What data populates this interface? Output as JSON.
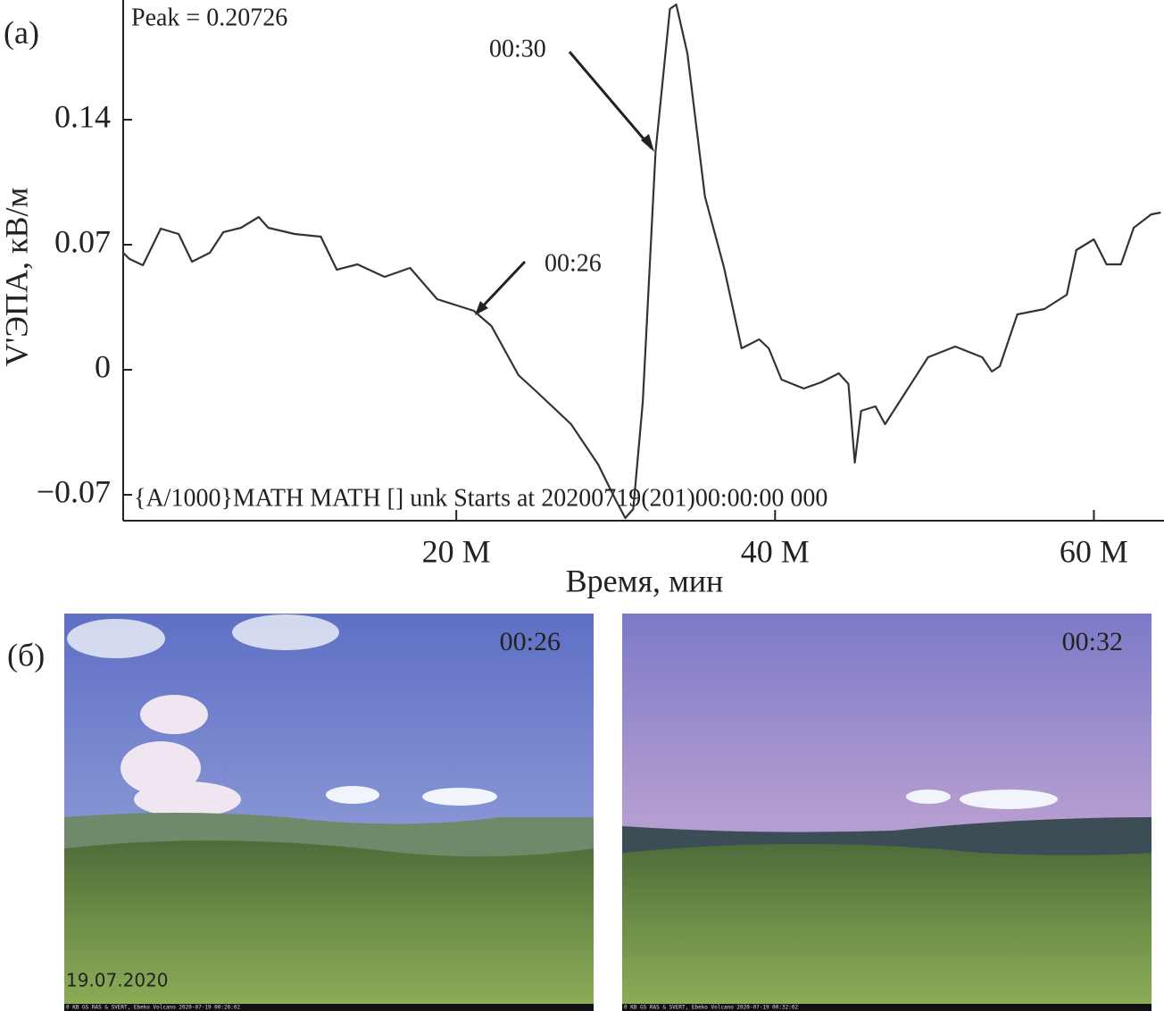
{
  "chart_data": {
    "type": "line",
    "panel_label": "(а)",
    "peak_note": "Peak = 0.20726",
    "start_note": "{A/1000}MATH MATH [] unk Starts at 20200719(201)00:00:00 000",
    "ylabel": "V'ЭПА, кВ/м",
    "xlabel": "Время, мин",
    "annotations": [
      "00:30",
      "00:26"
    ],
    "color": "#333333",
    "xlim": [
      -0.9,
      64.4
    ],
    "ylim": [
      -0.0845,
      0.207
    ],
    "xticks": [
      {
        "value": 20,
        "label": "20 M"
      },
      {
        "value": 40,
        "label": "40 M"
      },
      {
        "value": 60,
        "label": "60 M"
      }
    ],
    "yticks": [
      {
        "value": -0.07,
        "label": "−0.07"
      },
      0,
      0.07,
      0.14
    ],
    "x": [
      -0.9,
      -0.5,
      0.34,
      1.46,
      2.58,
      3.42,
      4.54,
      5.38,
      6.5,
      7.6,
      8.2,
      9.85,
      11.5,
      12.5,
      13.8,
      15.5,
      17.1,
      18.8,
      21.1,
      22.2,
      23.9,
      25.0,
      27.2,
      28.9,
      30.0,
      30.6,
      31.1,
      31.7,
      32.5,
      33.4,
      33.8,
      34.5,
      35.6,
      36.8,
      37.9,
      39.0,
      39.6,
      40.4,
      41.8,
      42.9,
      44.0,
      44.6,
      45.0,
      45.4,
      46.3,
      46.9,
      49.6,
      51.3,
      53.0,
      53.6,
      54.1,
      55.2,
      56.9,
      58.3,
      58.9,
      60.0,
      60.8,
      61.7,
      62.5,
      63.6,
      64.2
    ],
    "values": [
      0.0655,
      0.062,
      0.0585,
      0.079,
      0.076,
      0.0605,
      0.0655,
      0.077,
      0.0795,
      0.0855,
      0.0795,
      0.076,
      0.0745,
      0.056,
      0.059,
      0.052,
      0.057,
      0.0395,
      0.033,
      0.0245,
      -0.003,
      -0.012,
      -0.0305,
      -0.053,
      -0.073,
      -0.083,
      -0.078,
      -0.018,
      0.122,
      0.202,
      0.2045,
      0.177,
      0.097,
      0.057,
      0.012,
      0.017,
      0.012,
      -0.0055,
      -0.0105,
      -0.007,
      -0.002,
      -0.008,
      -0.052,
      -0.023,
      -0.0205,
      -0.0305,
      0.007,
      0.013,
      0.007,
      -0.001,
      0.002,
      0.031,
      0.034,
      0.042,
      0.067,
      0.073,
      0.059,
      0.059,
      0.0795,
      0.087,
      0.088
    ]
  },
  "photos": {
    "panel_label": "(б)",
    "items": [
      {
        "time": "00:26",
        "date": "19.07.2020",
        "footer": "0 KB GS RAS & SVERT, Ebeko Volcano 2020-07-19 00:26:02"
      },
      {
        "time": "00:32",
        "footer": "0 KB GS RAS & SVERT, Ebeko Volcano 2020-07-19 00:32:02"
      }
    ]
  }
}
